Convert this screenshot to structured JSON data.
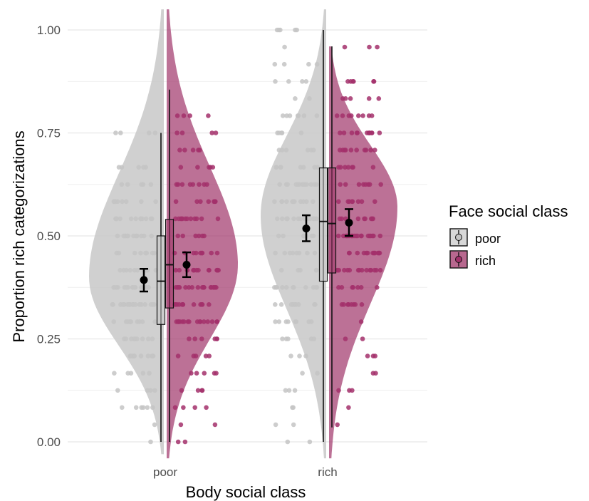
{
  "chart_data": {
    "type": "raincloud",
    "xlabel": "Body social class",
    "ylabel": "Proportion rich categorizations",
    "categories": [
      "poor",
      "rich"
    ],
    "ylim": [
      0,
      1
    ],
    "yticks": [
      "0.00",
      "0.25",
      "0.50",
      "0.75",
      "1.00"
    ],
    "grid": true,
    "legend": {
      "title": "Face social class",
      "position": "right",
      "entries": [
        {
          "label": "poor",
          "color": "#c8c8c8"
        },
        {
          "label": "rich",
          "color": "#a0356a"
        }
      ]
    },
    "series": [
      {
        "name": "poor",
        "color": "#c8c8c8",
        "groups": [
          {
            "category": "poor",
            "min": 0.0,
            "q1": 0.285,
            "median": 0.39,
            "q3": 0.5,
            "max": 0.75,
            "mean": 0.393,
            "ci": [
              0.365,
              0.42
            ],
            "violin_range": [
              -0.03,
              1.05
            ],
            "violin_peak": 0.4
          },
          {
            "category": "rich",
            "min": 0.0,
            "q1": 0.39,
            "median": 0.535,
            "q3": 0.665,
            "max": 1.0,
            "mean": 0.518,
            "ci": [
              0.487,
              0.55
            ],
            "violin_range": [
              -0.04,
              1.05
            ],
            "violin_peak": 0.55
          }
        ]
      },
      {
        "name": "rich",
        "color": "#a0356a",
        "groups": [
          {
            "category": "poor",
            "min": 0.0,
            "q1": 0.325,
            "median": 0.43,
            "q3": 0.54,
            "max": 0.855,
            "mean": 0.43,
            "ci": [
              0.4,
              0.46
            ],
            "violin_range": [
              -0.04,
              1.05
            ],
            "violin_peak": 0.43
          },
          {
            "category": "rich",
            "min": 0.035,
            "q1": 0.41,
            "median": 0.53,
            "q3": 0.665,
            "max": 0.96,
            "mean": 0.532,
            "ci": [
              0.5,
              0.565
            ],
            "violin_range": [
              -0.04,
              0.96
            ],
            "violin_peak": 0.57
          }
        ]
      }
    ]
  },
  "colors": {
    "poor": "#c8c8c8",
    "rich": "#a0356a",
    "poor_point": "#c4c4c4",
    "rich_point": "#a3306b",
    "grid": "#ebebeb"
  }
}
